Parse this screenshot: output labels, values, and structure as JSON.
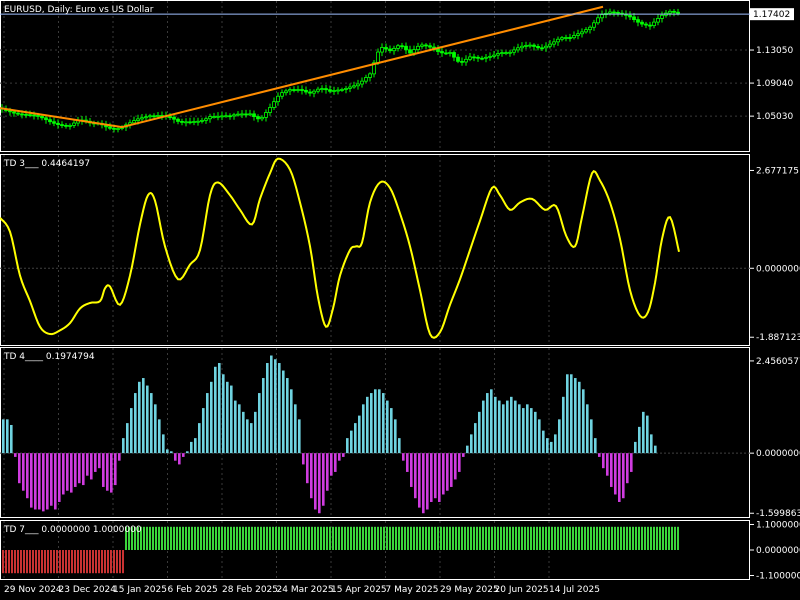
{
  "chart_data": [
    {
      "type": "candlestick",
      "title": "EURUSD, Daily:  Euro vs US Dollar",
      "yticks": [
        "1.13050",
        "1.09040",
        "1.05030"
      ],
      "ylim": [
        1.008,
        1.19
      ],
      "current_price": "1.17402",
      "current_price_value": 1.17402,
      "colors": {
        "candle": "#00ff00",
        "trend": "#ff8c00",
        "price_line": "#a0c0ff",
        "price_label_bg": "#ffffff",
        "price_label_text": "#000000"
      },
      "trendline": [
        {
          "x": "29 Nov 2024",
          "y": 1.06
        },
        {
          "x": "31 Dec 2024",
          "y": 1.037
        },
        {
          "x": "1 Jul 2025",
          "y": 1.183
        }
      ],
      "close_path": [
        [
          0,
          1.06
        ],
        [
          10,
          1.058
        ],
        [
          20,
          1.054
        ],
        [
          30,
          1.05
        ],
        [
          40,
          1.047
        ],
        [
          50,
          1.044
        ],
        [
          60,
          1.042
        ],
        [
          70,
          1.04
        ],
        [
          80,
          1.044
        ],
        [
          90,
          1.04
        ],
        [
          100,
          1.042
        ],
        [
          110,
          1.038
        ],
        [
          120,
          1.036
        ],
        [
          130,
          1.04
        ],
        [
          140,
          1.046
        ],
        [
          150,
          1.052
        ],
        [
          160,
          1.054
        ],
        [
          170,
          1.049
        ],
        [
          180,
          1.04
        ],
        [
          190,
          1.042
        ],
        [
          200,
          1.046
        ],
        [
          210,
          1.052
        ],
        [
          220,
          1.05
        ],
        [
          230,
          1.048
        ],
        [
          240,
          1.052
        ],
        [
          250,
          1.055
        ],
        [
          260,
          1.048
        ],
        [
          270,
          1.06
        ],
        [
          280,
          1.075
        ],
        [
          290,
          1.082
        ],
        [
          300,
          1.085
        ],
        [
          310,
          1.08
        ],
        [
          320,
          1.083
        ],
        [
          330,
          1.078
        ],
        [
          340,
          1.082
        ],
        [
          350,
          1.088
        ],
        [
          360,
          1.092
        ],
        [
          370,
          1.1
        ],
        [
          380,
          1.132
        ],
        [
          390,
          1.13
        ],
        [
          400,
          1.14
        ],
        [
          410,
          1.128
        ],
        [
          420,
          1.135
        ],
        [
          430,
          1.132
        ],
        [
          440,
          1.128
        ],
        [
          450,
          1.13
        ],
        [
          460,
          1.115
        ],
        [
          470,
          1.12
        ],
        [
          480,
          1.118
        ],
        [
          490,
          1.124
        ],
        [
          500,
          1.13
        ],
        [
          510,
          1.128
        ],
        [
          520,
          1.132
        ],
        [
          530,
          1.135
        ],
        [
          540,
          1.134
        ],
        [
          550,
          1.14
        ],
        [
          560,
          1.145
        ],
        [
          570,
          1.143
        ],
        [
          580,
          1.15
        ],
        [
          590,
          1.16
        ],
        [
          600,
          1.175
        ],
        [
          610,
          1.176
        ],
        [
          620,
          1.172
        ],
        [
          630,
          1.17
        ],
        [
          640,
          1.165
        ],
        [
          650,
          1.162
        ],
        [
          660,
          1.17
        ],
        [
          670,
          1.175
        ],
        [
          678,
          1.174
        ]
      ]
    },
    {
      "type": "line",
      "label": "TD 3___  0.4464197",
      "yticks": [
        "2.6771751",
        "0.0000000",
        "-1.8871231"
      ],
      "ylim": [
        -2.1,
        3.1
      ],
      "zero_line": 0,
      "colors": {
        "line": "#ffff00"
      },
      "values": [
        [
          0,
          1.38
        ],
        [
          10,
          1.0
        ],
        [
          20,
          -0.2
        ],
        [
          30,
          -0.9
        ],
        [
          40,
          -1.6
        ],
        [
          50,
          -1.8
        ],
        [
          60,
          -1.7
        ],
        [
          70,
          -1.5
        ],
        [
          80,
          -1.1
        ],
        [
          90,
          -0.95
        ],
        [
          100,
          -0.9
        ],
        [
          105,
          -0.55
        ],
        [
          110,
          -0.5
        ],
        [
          120,
          -1.0
        ],
        [
          130,
          -0.2
        ],
        [
          140,
          1.2
        ],
        [
          148,
          2.0
        ],
        [
          155,
          1.85
        ],
        [
          165,
          0.6
        ],
        [
          178,
          -0.3
        ],
        [
          190,
          0.1
        ],
        [
          200,
          0.5
        ],
        [
          210,
          2.0
        ],
        [
          218,
          2.35
        ],
        [
          230,
          2.0
        ],
        [
          240,
          1.6
        ],
        [
          252,
          1.2
        ],
        [
          260,
          1.9
        ],
        [
          270,
          2.6
        ],
        [
          278,
          3.0
        ],
        [
          290,
          2.7
        ],
        [
          300,
          1.8
        ],
        [
          310,
          0.6
        ],
        [
          318,
          -0.8
        ],
        [
          326,
          -1.6
        ],
        [
          333,
          -1.1
        ],
        [
          340,
          -0.2
        ],
        [
          350,
          0.5
        ],
        [
          356,
          0.6
        ],
        [
          362,
          0.7
        ],
        [
          370,
          1.8
        ],
        [
          380,
          2.35
        ],
        [
          390,
          2.2
        ],
        [
          400,
          1.5
        ],
        [
          410,
          0.6
        ],
        [
          420,
          -0.6
        ],
        [
          430,
          -1.8
        ],
        [
          440,
          -1.75
        ],
        [
          450,
          -1.0
        ],
        [
          460,
          -0.3
        ],
        [
          470,
          0.5
        ],
        [
          480,
          1.3
        ],
        [
          492,
          2.2
        ],
        [
          500,
          2.0
        ],
        [
          510,
          1.6
        ],
        [
          520,
          1.8
        ],
        [
          532,
          1.9
        ],
        [
          545,
          1.6
        ],
        [
          556,
          1.7
        ],
        [
          566,
          0.9
        ],
        [
          575,
          0.6
        ],
        [
          582,
          1.4
        ],
        [
          592,
          2.6
        ],
        [
          600,
          2.4
        ],
        [
          610,
          1.8
        ],
        [
          620,
          0.8
        ],
        [
          630,
          -0.6
        ],
        [
          640,
          -1.3
        ],
        [
          648,
          -1.2
        ],
        [
          655,
          -0.4
        ],
        [
          662,
          0.8
        ],
        [
          670,
          1.4
        ],
        [
          679,
          0.45
        ]
      ]
    },
    {
      "type": "histogram",
      "label": "TD 4____  0.1974794",
      "yticks": [
        "2.4560577",
        "0.0000000",
        "-1.5998632"
      ],
      "ylim": [
        -1.7,
        2.8
      ],
      "colors": {
        "positive": "#6fd3e0",
        "negative": "#d03ce0"
      },
      "values": [
        0.9,
        0.9,
        0.75,
        -0.1,
        -0.8,
        -1.0,
        -1.2,
        -1.45,
        -1.5,
        -1.5,
        -1.55,
        -1.5,
        -1.4,
        -1.5,
        -1.3,
        -1.1,
        -1.0,
        -1.05,
        -0.9,
        -0.8,
        -0.85,
        -0.6,
        -0.7,
        -0.5,
        -0.4,
        -0.9,
        -1.0,
        -1.05,
        -0.85,
        -0.2,
        0.4,
        0.8,
        1.2,
        1.6,
        1.9,
        2.0,
        1.8,
        1.6,
        1.3,
        0.9,
        0.5,
        0.1,
        0.05,
        -0.2,
        -0.3,
        -0.1,
        0.05,
        0.3,
        0.4,
        0.8,
        1.2,
        1.6,
        1.9,
        2.3,
        2.4,
        2.1,
        1.9,
        1.8,
        1.4,
        1.3,
        1.1,
        0.9,
        0.8,
        1.1,
        1.6,
        2.0,
        2.4,
        2.6,
        2.5,
        2.4,
        2.2,
        2.0,
        1.7,
        1.3,
        0.9,
        -0.3,
        -0.8,
        -1.2,
        -1.5,
        -1.6,
        -1.4,
        -1.0,
        -0.6,
        -0.5,
        -0.2,
        -0.1,
        0.4,
        0.6,
        0.8,
        1.0,
        1.3,
        1.5,
        1.6,
        1.7,
        1.7,
        1.6,
        1.4,
        1.2,
        0.9,
        0.4,
        -0.2,
        -0.5,
        -0.9,
        -1.2,
        -1.45,
        -1.6,
        -1.5,
        -1.3,
        -1.2,
        -1.3,
        -1.1,
        -1.0,
        -0.9,
        -0.7,
        -0.5,
        -0.1,
        0.2,
        0.5,
        0.8,
        1.1,
        1.4,
        1.6,
        1.7,
        1.5,
        1.4,
        1.3,
        1.4,
        1.5,
        1.4,
        1.3,
        1.2,
        1.3,
        1.2,
        1.1,
        0.9,
        0.6,
        0.4,
        0.3,
        0.5,
        0.9,
        1.5,
        2.1,
        2.1,
        2.0,
        1.9,
        1.7,
        1.3,
        0.9,
        0.4,
        -0.1,
        -0.4,
        -0.6,
        -0.9,
        -1.1,
        -1.3,
        -1.2,
        -0.8,
        -0.5,
        0.3,
        0.7,
        1.1,
        1.0,
        0.5,
        0.2
      ]
    },
    {
      "type": "histogram",
      "label": "TD 7___  0.0000000  1.0000000",
      "yticks": [
        "1.1000000",
        "0.0000000",
        "-1.1000000"
      ],
      "ylim": [
        -1.25,
        1.25
      ],
      "colors": {
        "positive": "#3bd43b",
        "negative": "#c83232"
      },
      "switch_x": "31 Dec 2024",
      "negative_value": -1,
      "positive_value": 1
    },
    {
      "type": "time_axis",
      "xticks": [
        "29 Nov 2024",
        "23 Dec 2024",
        "15 Jan 2025",
        "6 Feb 2025",
        "28 Feb 2025",
        "24 Mar 2025",
        "15 Apr 2025",
        "7 May 2025",
        "29 May 2025",
        "20 Jun 2025",
        "14 Jul 2025"
      ]
    }
  ]
}
